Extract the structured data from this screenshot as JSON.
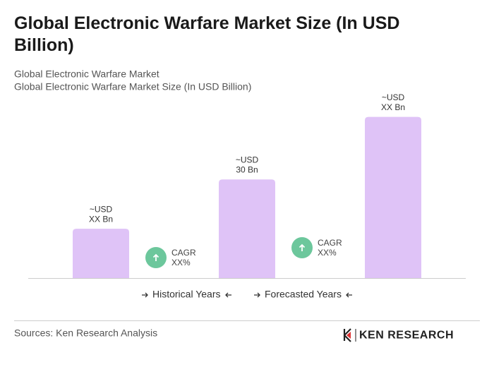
{
  "chart_data": {
    "type": "bar",
    "title": "Global Electronic Warfare Market Size (In USD Billion)",
    "subtitle": [
      "Global Electronic Warfare Market",
      "Global Electronic Warfare Market Size (In USD Billion)"
    ],
    "categories": [
      null,
      null,
      null
    ],
    "values": [
      15,
      30,
      49
    ],
    "value_labels": [
      [
        "~USD",
        "XX Bn"
      ],
      [
        "~USD",
        "30 Bn"
      ],
      [
        "~USD",
        "XX Bn"
      ]
    ],
    "color": "#dfc3f7",
    "ylim": [
      0,
      50
    ],
    "annotations": [
      [
        "CAGR",
        "XX%"
      ],
      [
        "CAGR",
        "XX%"
      ]
    ],
    "legend": [
      "Historical Years",
      "Forecasted Years"
    ],
    "source": "Sources: Ken Research Analysis",
    "logo": "KEN RESEARCH"
  }
}
